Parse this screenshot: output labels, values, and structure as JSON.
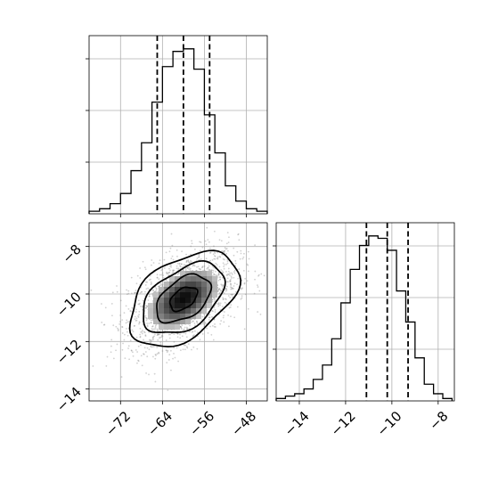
{
  "chart_data": [
    {
      "type": "histogram",
      "panel": "top-left",
      "parameter": "first parameter (x of joint panel)",
      "bins": [
        -78.0,
        -76.0,
        -74.0,
        -72.0,
        -70.0,
        -68.0,
        -66.0,
        -64.0,
        -62.0,
        -60.0,
        -58.0,
        -56.0,
        -54.0,
        -52.0,
        -50.0,
        -48.0,
        -46.0,
        -44.0
      ],
      "counts": [
        1,
        2,
        4,
        8,
        17,
        28,
        44,
        58,
        64,
        65,
        57,
        39,
        24,
        11,
        5,
        2,
        1
      ],
      "quantiles": [
        -65.0,
        -60.0,
        -55.0
      ],
      "xlim": [
        -78,
        -44
      ],
      "xticks": [
        -72,
        -64,
        -56,
        -48
      ],
      "grid": true
    },
    {
      "type": "histogram",
      "panel": "bottom-right",
      "parameter": "second parameter (y of joint panel)",
      "bins": [
        -15.0,
        -14.6,
        -14.2,
        -13.8,
        -13.4,
        -13.0,
        -12.6,
        -12.2,
        -11.8,
        -11.4,
        -11.0,
        -10.6,
        -10.2,
        -9.8,
        -9.4,
        -9.0,
        -8.6,
        -8.2,
        -7.8,
        -7.4
      ],
      "counts": [
        1,
        2,
        3,
        5,
        9,
        15,
        26,
        41,
        55,
        65,
        69,
        68,
        63,
        46,
        33,
        18,
        7,
        3,
        1
      ],
      "quantiles": [
        -11.1,
        -10.2,
        -9.3
      ],
      "xlim": [
        -15.0,
        -7.3
      ],
      "xticks": [
        -14,
        -12,
        -10,
        -8
      ],
      "xtick_labels": [
        "−14",
        "−12",
        "−10",
        "−8"
      ],
      "grid": true
    },
    {
      "type": "scatter",
      "panel": "bottom-left",
      "description_of_marks": "2D density with contours of the two parameters",
      "xlim": [
        -78,
        -44
      ],
      "ylim": [
        -14.5,
        -7.0
      ],
      "xticks": [
        -72,
        -64,
        -56,
        -48
      ],
      "xtick_labels": [
        "−72",
        "−64",
        "−56",
        "−48"
      ],
      "yticks": [
        -14,
        -12,
        -10,
        -8
      ],
      "ytick_labels": [
        "−14",
        "−12",
        "−10",
        "−8"
      ],
      "center": [
        -60.0,
        -10.2
      ],
      "std": [
        5.2,
        1.0
      ],
      "correlation": 0.45,
      "n_points": 2000,
      "contour_levels_sigma": [
        0.5,
        1.0,
        1.5,
        2.0
      ],
      "grid": true
    }
  ]
}
